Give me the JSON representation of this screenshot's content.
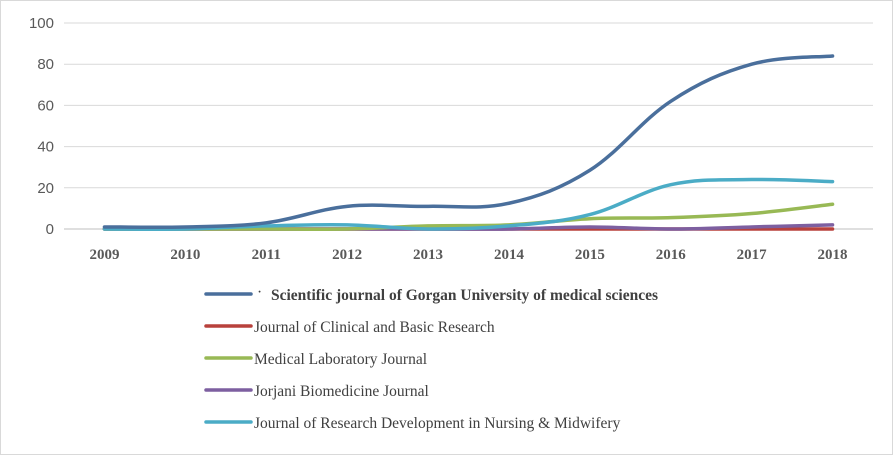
{
  "chart_data": {
    "type": "line",
    "title": "",
    "xlabel": "",
    "ylabel": "",
    "ylim": [
      0,
      100
    ],
    "yticks": [
      "0",
      "20",
      "40",
      "60",
      "80",
      "100"
    ],
    "categories": [
      "2009",
      "2010",
      "2011",
      "2012",
      "2013",
      "2014",
      "2015",
      "2016",
      "2017",
      "2018"
    ],
    "grid": "horizontal",
    "legend_position": "bottom",
    "series": [
      {
        "name": "Scientific journal of Gorgan University of medical sciences",
        "color": "#4A6F9C",
        "bold": true,
        "marker": "·",
        "values": [
          1,
          1,
          3,
          11,
          11,
          12.5,
          28.5,
          62,
          80,
          84
        ]
      },
      {
        "name": "Journal of Clinical and Basic Research",
        "color": "#B8413C",
        "bold": false,
        "values": [
          0,
          0,
          0,
          0,
          0,
          0,
          0,
          0,
          0,
          0
        ]
      },
      {
        "name": "Medical Laboratory Journal",
        "color": "#98B955",
        "bold": false,
        "values": [
          0,
          0,
          0,
          0,
          1.5,
          2,
          5,
          5.5,
          7.5,
          12
        ]
      },
      {
        "name": "Jorjani Biomedicine Journal",
        "color": "#7D5FA0",
        "bold": false,
        "values": [
          0,
          0,
          0,
          0,
          0,
          0,
          1,
          0,
          1,
          2
        ]
      },
      {
        "name": "Journal of Research Development in Nursing & Midwifery",
        "color": "#4BACC6",
        "bold": false,
        "values": [
          0,
          0,
          1.5,
          2,
          0,
          1.5,
          7,
          21.5,
          24,
          23
        ]
      }
    ]
  }
}
